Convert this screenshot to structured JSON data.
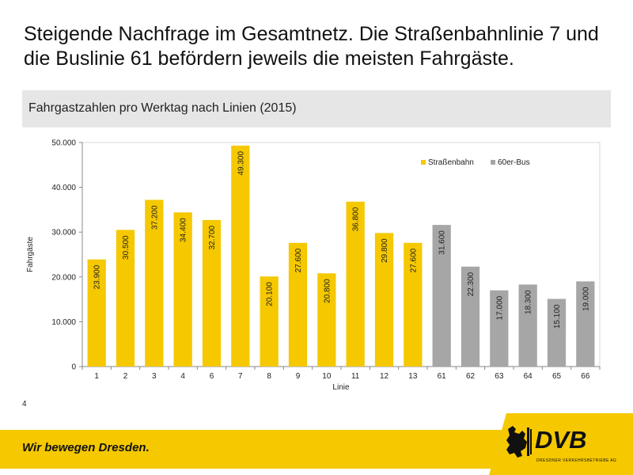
{
  "slide": {
    "headline": "Steigende Nachfrage im Gesamtnetz. Die Straßenbahnlinie 7 und die Buslinie 61 befördern jeweils die meisten Fahrgäste.",
    "subtitle": "Fahrgastzahlen pro Werktag nach Linien (2015)",
    "page_number": "4",
    "slogan": "Wir bewegen Dresden.",
    "logo_text": "DVB",
    "logo_subtext": "Dresdner Verkehrsbetriebe AG"
  },
  "colors": {
    "tram": "#f5c800",
    "bus": "#a6a6a6",
    "footer": "#f5c800"
  },
  "chart_data": {
    "type": "bar",
    "xlabel": "Linie",
    "ylabel": "Fahrgäste",
    "ylim": [
      0,
      50000
    ],
    "yticks": [
      0,
      10000,
      20000,
      30000,
      40000,
      50000
    ],
    "ytick_labels": [
      "0",
      "10.000",
      "20.000",
      "30.000",
      "40.000",
      "50.000"
    ],
    "grid": false,
    "legend_position": "top-right",
    "categories": [
      "1",
      "2",
      "3",
      "4",
      "6",
      "7",
      "8",
      "9",
      "10",
      "11",
      "12",
      "13",
      "61",
      "62",
      "63",
      "64",
      "65",
      "66"
    ],
    "series": [
      {
        "name": "Straßenbahn",
        "color": "#f5c800",
        "values": [
          23900,
          30500,
          37200,
          34400,
          32700,
          49300,
          20100,
          27600,
          20800,
          36800,
          29800,
          27600,
          null,
          null,
          null,
          null,
          null,
          null
        ],
        "labels": [
          "23.900",
          "30.500",
          "37.200",
          "34.400",
          "32.700",
          "49.300",
          "20.100",
          "27.600",
          "20.800",
          "36.800",
          "29.800",
          "27.600",
          "",
          "",
          "",
          "",
          "",
          ""
        ]
      },
      {
        "name": "60er-Bus",
        "color": "#a6a6a6",
        "values": [
          null,
          null,
          null,
          null,
          null,
          null,
          null,
          null,
          null,
          null,
          null,
          null,
          31600,
          22300,
          17000,
          18300,
          15100,
          19000
        ],
        "labels": [
          "",
          "",
          "",
          "",
          "",
          "",
          "",
          "",
          "",
          "",
          "",
          "",
          "31.600",
          "22.300",
          "17.000",
          "18.300",
          "15.100",
          "19.000"
        ]
      }
    ]
  }
}
